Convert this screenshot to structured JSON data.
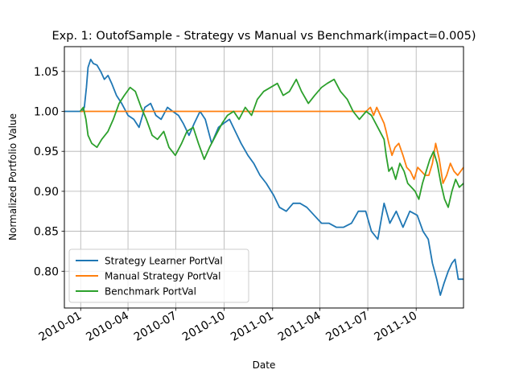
{
  "chart_data": {
    "type": "line",
    "title": "Exp. 1: OutofSample - Strategy vs Manual vs Benchmark(impact=0.005)",
    "xlabel": "Date",
    "ylabel": "Normalized Portfolio Value",
    "xlim": [
      "2009-12-01",
      "2011-12-30"
    ],
    "ylim": [
      0.754,
      1.081
    ],
    "x_ticks": [
      "2010-01",
      "2010-04",
      "2010-07",
      "2010-10",
      "2011-01",
      "2011-04",
      "2011-07",
      "2011-10"
    ],
    "y_ticks": [
      "0.80",
      "0.85",
      "0.90",
      "0.95",
      "1.00",
      "1.05"
    ],
    "grid": true,
    "legend_position": "lower-left",
    "series": [
      {
        "name": "Strategy Learner PortVal",
        "color": "#1f77b4",
        "points": [
          [
            "2009-12-01",
            1.0
          ],
          [
            "2009-12-31",
            1.0
          ],
          [
            "2010-01-04",
            1.0
          ],
          [
            "2010-01-08",
            1.005
          ],
          [
            "2010-01-12",
            1.03
          ],
          [
            "2010-01-15",
            1.055
          ],
          [
            "2010-01-20",
            1.065
          ],
          [
            "2010-01-25",
            1.06
          ],
          [
            "2010-02-01",
            1.058
          ],
          [
            "2010-02-08",
            1.05
          ],
          [
            "2010-02-15",
            1.04
          ],
          [
            "2010-02-22",
            1.045
          ],
          [
            "2010-03-01",
            1.035
          ],
          [
            "2010-03-10",
            1.02
          ],
          [
            "2010-03-20",
            1.01
          ],
          [
            "2010-04-01",
            0.995
          ],
          [
            "2010-04-12",
            0.99
          ],
          [
            "2010-04-22",
            0.98
          ],
          [
            "2010-05-03",
            1.005
          ],
          [
            "2010-05-14",
            1.01
          ],
          [
            "2010-05-24",
            0.995
          ],
          [
            "2010-06-03",
            0.99
          ],
          [
            "2010-06-15",
            1.005
          ],
          [
            "2010-06-25",
            1.0
          ],
          [
            "2010-07-06",
            0.995
          ],
          [
            "2010-07-15",
            0.985
          ],
          [
            "2010-07-26",
            0.97
          ],
          [
            "2010-08-05",
            0.985
          ],
          [
            "2010-08-16",
            1.0
          ],
          [
            "2010-08-26",
            0.99
          ],
          [
            "2010-09-07",
            0.96
          ],
          [
            "2010-09-20",
            0.98
          ],
          [
            "2010-09-30",
            0.985
          ],
          [
            "2010-10-11",
            0.99
          ],
          [
            "2010-10-22",
            0.975
          ],
          [
            "2010-11-02",
            0.96
          ],
          [
            "2010-11-15",
            0.945
          ],
          [
            "2010-11-26",
            0.935
          ],
          [
            "2010-12-08",
            0.92
          ],
          [
            "2010-12-20",
            0.91
          ],
          [
            "2011-01-03",
            0.895
          ],
          [
            "2011-01-14",
            0.88
          ],
          [
            "2011-01-27",
            0.875
          ],
          [
            "2011-02-09",
            0.885
          ],
          [
            "2011-02-22",
            0.885
          ],
          [
            "2011-03-07",
            0.88
          ],
          [
            "2011-03-21",
            0.87
          ],
          [
            "2011-04-04",
            0.86
          ],
          [
            "2011-04-18",
            0.86
          ],
          [
            "2011-05-02",
            0.855
          ],
          [
            "2011-05-16",
            0.855
          ],
          [
            "2011-05-31",
            0.86
          ],
          [
            "2011-06-13",
            0.875
          ],
          [
            "2011-06-27",
            0.875
          ],
          [
            "2011-07-08",
            0.85
          ],
          [
            "2011-07-20",
            0.84
          ],
          [
            "2011-08-01",
            0.885
          ],
          [
            "2011-08-12",
            0.86
          ],
          [
            "2011-08-24",
            0.875
          ],
          [
            "2011-09-06",
            0.855
          ],
          [
            "2011-09-19",
            0.875
          ],
          [
            "2011-10-03",
            0.87
          ],
          [
            "2011-10-14",
            0.85
          ],
          [
            "2011-10-24",
            0.84
          ],
          [
            "2011-11-01",
            0.81
          ],
          [
            "2011-11-09",
            0.79
          ],
          [
            "2011-11-16",
            0.77
          ],
          [
            "2011-11-23",
            0.785
          ],
          [
            "2011-12-01",
            0.8
          ],
          [
            "2011-12-08",
            0.81
          ],
          [
            "2011-12-14",
            0.815
          ],
          [
            "2011-12-20",
            0.79
          ],
          [
            "2011-12-30",
            0.79
          ]
        ]
      },
      {
        "name": "Manual Strategy PortVal",
        "color": "#ff7f0e",
        "points": [
          [
            "2009-12-31",
            1.0
          ],
          [
            "2010-01-04",
            1.0
          ],
          [
            "2011-06-20",
            1.0
          ],
          [
            "2011-06-28",
            1.0
          ],
          [
            "2011-07-06",
            1.005
          ],
          [
            "2011-07-12",
            0.995
          ],
          [
            "2011-07-18",
            1.005
          ],
          [
            "2011-07-25",
            0.995
          ],
          [
            "2011-08-01",
            0.985
          ],
          [
            "2011-08-05",
            0.975
          ],
          [
            "2011-08-10",
            0.96
          ],
          [
            "2011-08-16",
            0.945
          ],
          [
            "2011-08-22",
            0.955
          ],
          [
            "2011-08-29",
            0.96
          ],
          [
            "2011-09-06",
            0.945
          ],
          [
            "2011-09-13",
            0.93
          ],
          [
            "2011-09-20",
            0.925
          ],
          [
            "2011-09-27",
            0.915
          ],
          [
            "2011-10-04",
            0.93
          ],
          [
            "2011-10-11",
            0.925
          ],
          [
            "2011-10-18",
            0.92
          ],
          [
            "2011-10-25",
            0.92
          ],
          [
            "2011-11-01",
            0.935
          ],
          [
            "2011-11-07",
            0.96
          ],
          [
            "2011-11-14",
            0.94
          ],
          [
            "2011-11-21",
            0.91
          ],
          [
            "2011-11-28",
            0.92
          ],
          [
            "2011-12-05",
            0.935
          ],
          [
            "2011-12-12",
            0.925
          ],
          [
            "2011-12-19",
            0.92
          ],
          [
            "2011-12-30",
            0.93
          ]
        ]
      },
      {
        "name": "Benchmark PortVal",
        "color": "#2ca02c",
        "points": [
          [
            "2009-12-31",
            1.0
          ],
          [
            "2010-01-06",
            1.005
          ],
          [
            "2010-01-11",
            0.99
          ],
          [
            "2010-01-15",
            0.97
          ],
          [
            "2010-01-22",
            0.96
          ],
          [
            "2010-02-01",
            0.955
          ],
          [
            "2010-02-10",
            0.965
          ],
          [
            "2010-02-22",
            0.975
          ],
          [
            "2010-03-04",
            0.99
          ],
          [
            "2010-03-15",
            1.01
          ],
          [
            "2010-03-25",
            1.02
          ],
          [
            "2010-04-05",
            1.03
          ],
          [
            "2010-04-15",
            1.025
          ],
          [
            "2010-04-26",
            1.005
          ],
          [
            "2010-05-06",
            0.99
          ],
          [
            "2010-05-17",
            0.97
          ],
          [
            "2010-05-27",
            0.965
          ],
          [
            "2010-06-08",
            0.975
          ],
          [
            "2010-06-18",
            0.955
          ],
          [
            "2010-06-30",
            0.945
          ],
          [
            "2010-07-12",
            0.96
          ],
          [
            "2010-07-22",
            0.975
          ],
          [
            "2010-08-03",
            0.98
          ],
          [
            "2010-08-13",
            0.96
          ],
          [
            "2010-08-24",
            0.94
          ],
          [
            "2010-09-03",
            0.955
          ],
          [
            "2010-09-15",
            0.97
          ],
          [
            "2010-09-27",
            0.985
          ],
          [
            "2010-10-07",
            0.995
          ],
          [
            "2010-10-19",
            1.0
          ],
          [
            "2010-10-29",
            0.99
          ],
          [
            "2010-11-10",
            1.005
          ],
          [
            "2010-11-22",
            0.995
          ],
          [
            "2010-12-03",
            1.015
          ],
          [
            "2010-12-15",
            1.025
          ],
          [
            "2010-12-28",
            1.03
          ],
          [
            "2011-01-10",
            1.035
          ],
          [
            "2011-01-21",
            1.02
          ],
          [
            "2011-02-02",
            1.025
          ],
          [
            "2011-02-15",
            1.04
          ],
          [
            "2011-02-25",
            1.025
          ],
          [
            "2011-03-10",
            1.01
          ],
          [
            "2011-03-22",
            1.02
          ],
          [
            "2011-04-04",
            1.03
          ],
          [
            "2011-04-15",
            1.035
          ],
          [
            "2011-04-28",
            1.04
          ],
          [
            "2011-05-10",
            1.025
          ],
          [
            "2011-05-23",
            1.015
          ],
          [
            "2011-06-03",
            1.0
          ],
          [
            "2011-06-15",
            0.99
          ],
          [
            "2011-06-28",
            1.0
          ],
          [
            "2011-07-08",
            0.995
          ],
          [
            "2011-07-20",
            0.98
          ],
          [
            "2011-08-01",
            0.965
          ],
          [
            "2011-08-05",
            0.945
          ],
          [
            "2011-08-10",
            0.925
          ],
          [
            "2011-08-16",
            0.93
          ],
          [
            "2011-08-23",
            0.915
          ],
          [
            "2011-08-31",
            0.935
          ],
          [
            "2011-09-08",
            0.925
          ],
          [
            "2011-09-15",
            0.91
          ],
          [
            "2011-09-22",
            0.905
          ],
          [
            "2011-09-29",
            0.9
          ],
          [
            "2011-10-06",
            0.89
          ],
          [
            "2011-10-13",
            0.91
          ],
          [
            "2011-10-20",
            0.925
          ],
          [
            "2011-10-27",
            0.94
          ],
          [
            "2011-11-03",
            0.95
          ],
          [
            "2011-11-10",
            0.935
          ],
          [
            "2011-11-17",
            0.91
          ],
          [
            "2011-11-24",
            0.89
          ],
          [
            "2011-12-01",
            0.88
          ],
          [
            "2011-12-08",
            0.9
          ],
          [
            "2011-12-15",
            0.915
          ],
          [
            "2011-12-22",
            0.905
          ],
          [
            "2011-12-30",
            0.91
          ]
        ]
      }
    ]
  }
}
